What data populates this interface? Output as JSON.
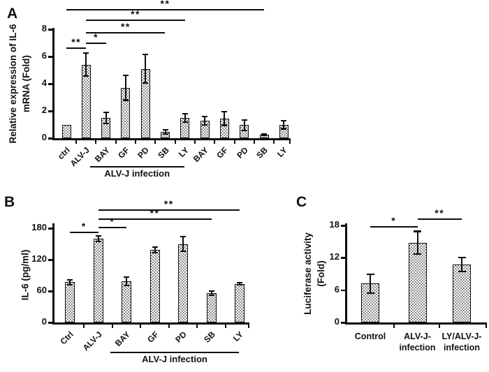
{
  "panels": {
    "A": {
      "label": "A"
    },
    "B": {
      "label": "B"
    },
    "C": {
      "label": "C"
    }
  },
  "chart_data": [
    {
      "panel": "A",
      "type": "bar",
      "title": "",
      "ylabel": "Relative expression of IL-6 mRNA (Fold)",
      "ylabel_lines": [
        "Relative expression of IL-6",
        "mRNA (Fold)"
      ],
      "xlabel": "",
      "ylim": [
        0,
        8
      ],
      "yticks": [
        0,
        2,
        4,
        6,
        8
      ],
      "grid": false,
      "bar_fill": "gray-checkerboard",
      "bar_outline": "#0d0d0d",
      "categories": [
        "ctrl",
        "ALV-J",
        "BAY",
        "GF",
        "PD",
        "SB",
        "LY",
        "BAY",
        "GF",
        "PD",
        "SB",
        "LY"
      ],
      "values": [
        1.0,
        5.4,
        1.5,
        3.7,
        5.1,
        0.45,
        1.5,
        1.3,
        1.45,
        0.95,
        0.25,
        1.0
      ],
      "errors": [
        0,
        0.85,
        0.4,
        0.9,
        1.05,
        0.15,
        0.3,
        0.3,
        0.5,
        0.4,
        0.06,
        0.3
      ],
      "group_label": {
        "text": "ALV-J infection",
        "from": 2,
        "to": 6
      },
      "significance": [
        {
          "from": 0,
          "to": 1,
          "label": "**"
        },
        {
          "from": 1,
          "to": 2,
          "label": "*"
        },
        {
          "from": 1,
          "to": 5,
          "label": "**"
        },
        {
          "from": 1,
          "to": 6,
          "label": "**"
        },
        {
          "from": 0,
          "to": 10,
          "label": "**"
        }
      ]
    },
    {
      "panel": "B",
      "type": "bar",
      "title": "",
      "ylabel": "IL-6 (pg/ml)",
      "ylabel_lines": [
        "IL-6 (pg/ml)"
      ],
      "xlabel": "",
      "ylim": [
        0,
        180
      ],
      "yticks": [
        0,
        60,
        120,
        180
      ],
      "grid": false,
      "bar_fill": "gray-checkerboard",
      "bar_outline": "#0d0d0d",
      "categories": [
        "Ctrl",
        "ALV-J",
        "BAY",
        "GF",
        "PD",
        "SB",
        "LY"
      ],
      "values": [
        77,
        160,
        79,
        139,
        150,
        56,
        74
      ],
      "errors": [
        5,
        5,
        8,
        5,
        14,
        4,
        2
      ],
      "group_label": {
        "text": "ALV-J infection",
        "from": 2,
        "to": 6
      },
      "significance": [
        {
          "from": 0,
          "to": 1,
          "label": "*"
        },
        {
          "from": 1,
          "to": 2,
          "label": "*"
        },
        {
          "from": 1,
          "to": 5,
          "label": "**"
        },
        {
          "from": 1,
          "to": 6,
          "label": "**"
        }
      ]
    },
    {
      "panel": "C",
      "type": "bar",
      "title": "",
      "ylabel": "Luciferase activity (Fold)",
      "ylabel_lines": [
        "Luciferase activity",
        "(Fold)"
      ],
      "xlabel": "",
      "ylim": [
        0,
        18
      ],
      "yticks": [
        0,
        6,
        12,
        18
      ],
      "grid": false,
      "bar_fill": "gray-checkerboard",
      "bar_outline": "#0d0d0d",
      "categories": [
        "Control",
        "ALV-J-\ninfection",
        "LY/ALV-J-\ninfection"
      ],
      "values": [
        7.2,
        14.8,
        10.8
      ],
      "errors": [
        1.8,
        2.1,
        1.3
      ],
      "significance": [
        {
          "from": 0,
          "to": 1,
          "label": "*"
        },
        {
          "from": 1,
          "to": 2,
          "label": "**"
        }
      ]
    }
  ]
}
